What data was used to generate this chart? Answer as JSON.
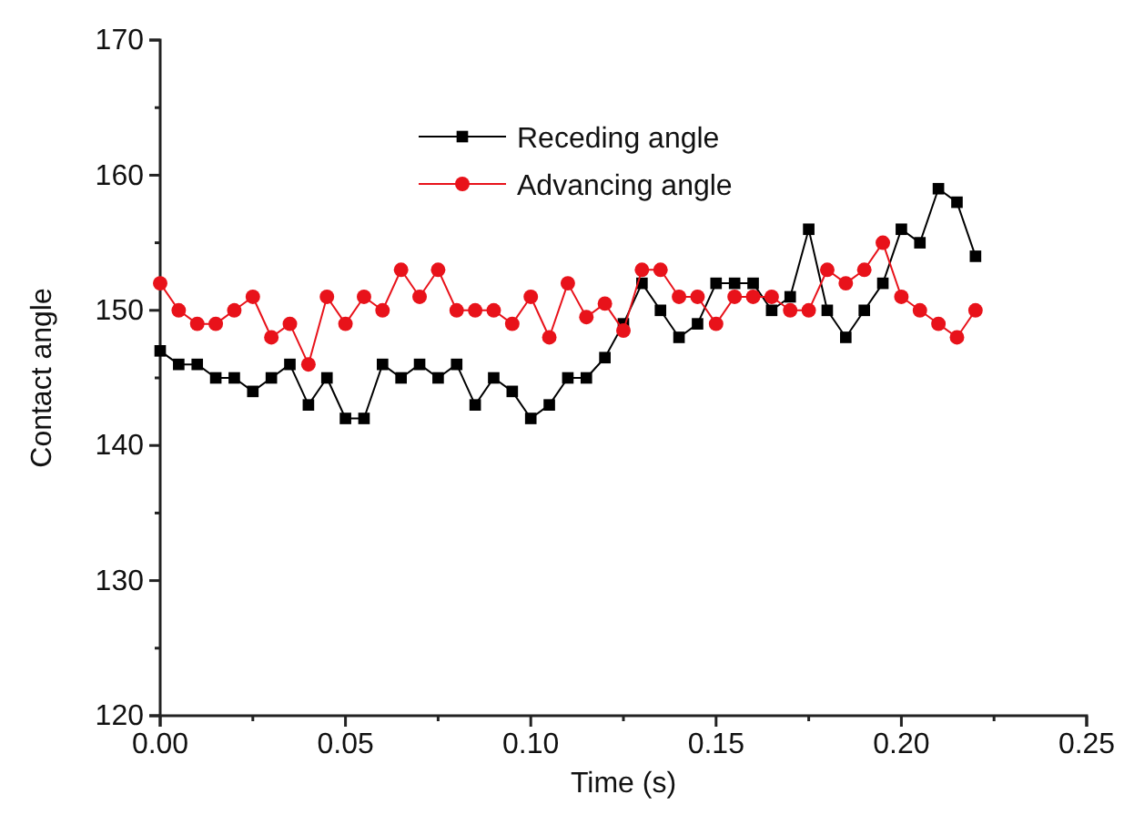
{
  "chart_data": {
    "type": "line",
    "xlabel": "Time (s)",
    "ylabel": "Contact angle",
    "x": [
      0,
      0.005,
      0.01,
      0.015,
      0.02,
      0.025,
      0.03,
      0.035,
      0.04,
      0.045,
      0.05,
      0.055,
      0.06,
      0.065,
      0.07,
      0.075,
      0.08,
      0.085,
      0.09,
      0.095,
      0.1,
      0.105,
      0.11,
      0.115,
      0.12,
      0.125,
      0.13,
      0.135,
      0.14,
      0.145,
      0.15,
      0.155,
      0.16,
      0.165,
      0.17,
      0.175,
      0.18,
      0.185,
      0.19,
      0.195,
      0.2,
      0.205,
      0.21,
      0.215,
      0.22
    ],
    "series": [
      {
        "name": "Receding angle",
        "color": "#000000",
        "marker": "square",
        "values": [
          147,
          146,
          146,
          145,
          145,
          144,
          145,
          146,
          143,
          145,
          142,
          142,
          146,
          145,
          146,
          145,
          146,
          143,
          145,
          144,
          142,
          143,
          145,
          145,
          146.5,
          149,
          152,
          150,
          148,
          149,
          152,
          152,
          152,
          150,
          151,
          156,
          150,
          148,
          150,
          152,
          156,
          155,
          159,
          158,
          154
        ]
      },
      {
        "name": "Advancing angle",
        "color": "#e8121a",
        "marker": "circle",
        "values": [
          152,
          150,
          149,
          149,
          150,
          151,
          148,
          149,
          146,
          151,
          149,
          151,
          150,
          153,
          151,
          153,
          150,
          150,
          150,
          149,
          151,
          148,
          152,
          149.5,
          150.5,
          148.5,
          153,
          153,
          151,
          151,
          149,
          151,
          151,
          151,
          150,
          150,
          153,
          152,
          153,
          155,
          151,
          150,
          149,
          148,
          150
        ]
      }
    ],
    "xlim": [
      0,
      0.25
    ],
    "xticks": [
      {
        "value": 0,
        "label": "0.00"
      },
      {
        "value": 0.05,
        "label": "0.05"
      },
      {
        "value": 0.1,
        "label": "0.10"
      },
      {
        "value": 0.15,
        "label": "0.15"
      },
      {
        "value": 0.2,
        "label": "0.20"
      },
      {
        "value": 0.25,
        "label": "0.25"
      }
    ],
    "ylim": [
      120,
      170
    ],
    "yticks": [
      120,
      130,
      140,
      150,
      160,
      170
    ],
    "legend": "top",
    "grid": false,
    "line_style": "solid"
  }
}
